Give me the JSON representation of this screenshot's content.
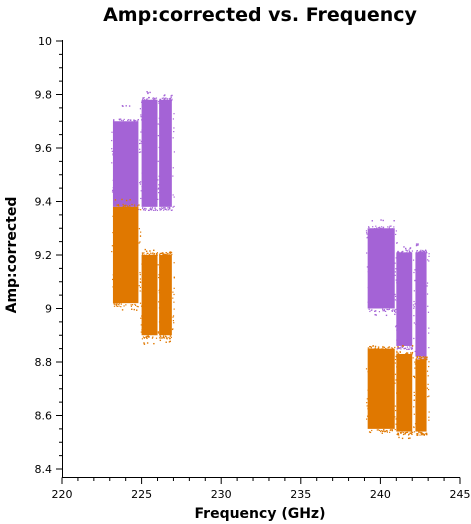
{
  "chart_data": {
    "type": "scatter",
    "title": "Amp:corrected vs. Frequency",
    "xlabel": "Frequency (GHz)",
    "ylabel": "Amp:corrected",
    "xlim": [
      220,
      245
    ],
    "ylim": [
      8.4,
      10
    ],
    "x_ticks": [
      "220",
      "225",
      "230",
      "235",
      "240",
      "245"
    ],
    "y_ticks": [
      "8.4",
      "8.6",
      "8.8",
      "9",
      "9.2",
      "9.4",
      "9.6",
      "9.8",
      "10"
    ],
    "grid": false,
    "legend": "none",
    "colors": {
      "purple": "#a463d6",
      "orange": "#e07800"
    },
    "series": [
      {
        "color": "#a463d6",
        "clusters": [
          {
            "x": [
              223.2,
              224.8
            ],
            "y": [
              9.38,
              9.7
            ],
            "y_outliers": [
              9.76,
              9.33
            ]
          },
          {
            "x": [
              225.0,
              226.0
            ],
            "y": [
              9.38,
              9.78
            ],
            "y_outliers": [
              9.81
            ]
          },
          {
            "x": [
              226.1,
              226.9
            ],
            "y": [
              9.38,
              9.78
            ],
            "y_outliers": [
              9.8
            ]
          },
          {
            "x": [
              239.2,
              240.9
            ],
            "y": [
              9.0,
              9.3
            ],
            "y_outliers": [
              9.33,
              8.98
            ]
          },
          {
            "x": [
              241.0,
              242.0
            ],
            "y": [
              8.86,
              9.21
            ],
            "y_outliers": [
              9.23,
              8.82
            ]
          },
          {
            "x": [
              242.2,
              242.9
            ],
            "y": [
              8.82,
              9.21
            ],
            "y_outliers": [
              9.24
            ]
          }
        ]
      },
      {
        "color": "#e07800",
        "clusters": [
          {
            "x": [
              223.2,
              224.8
            ],
            "y": [
              9.02,
              9.38
            ],
            "y_outliers": [
              9.41,
              9.0
            ]
          },
          {
            "x": [
              225.0,
              226.0
            ],
            "y": [
              8.9,
              9.2
            ],
            "y_outliers": [
              9.22,
              8.87
            ]
          },
          {
            "x": [
              226.1,
              226.9
            ],
            "y": [
              8.9,
              9.2
            ],
            "y_outliers": [
              9.21,
              8.88
            ]
          },
          {
            "x": [
              239.2,
              240.9
            ],
            "y": [
              8.55,
              8.85
            ],
            "y_outliers": [
              8.86,
              8.54
            ]
          },
          {
            "x": [
              241.0,
              242.0
            ],
            "y": [
              8.54,
              8.83
            ],
            "y_outliers": [
              8.86,
              8.52
            ]
          },
          {
            "x": [
              242.2,
              242.9
            ],
            "y": [
              8.54,
              8.81
            ],
            "y_outliers": [
              8.82,
              8.53
            ]
          }
        ]
      }
    ]
  }
}
